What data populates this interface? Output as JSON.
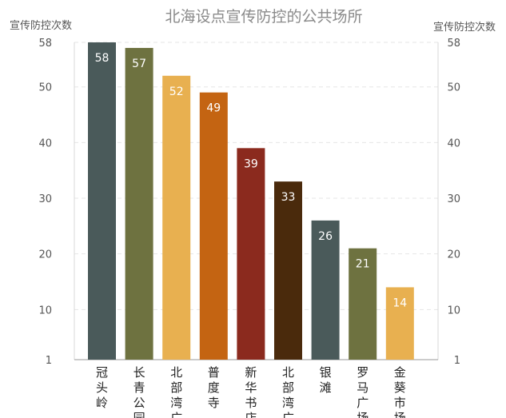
{
  "chart_data": {
    "type": "bar",
    "title": "北海设点宣传防控的公共场所",
    "ylabel": "宣传防控次数",
    "ylabel_right": "宣传防控次数",
    "ylim": [
      1,
      58
    ],
    "yticks": [
      1,
      10,
      20,
      30,
      40,
      50,
      58
    ],
    "grid": true,
    "categories": [
      "冠头岭",
      "长青公园",
      "北部湾广场",
      "普度寺",
      "新华书店",
      "北部湾广场",
      "银滩",
      "罗马广场",
      "金葵市场"
    ],
    "category_visible_lines": [
      [
        "冠",
        "头",
        "岭"
      ],
      [
        "长",
        "青",
        "公",
        "园"
      ],
      [
        "北",
        "部",
        "湾",
        "广"
      ],
      [
        "普",
        "度",
        "寺"
      ],
      [
        "新",
        "华",
        "书",
        "店"
      ],
      [
        "北",
        "部",
        "湾",
        "广"
      ],
      [
        "银",
        "滩"
      ],
      [
        "罗",
        "马",
        "广",
        "场"
      ],
      [
        "金",
        "葵",
        "市",
        "场"
      ]
    ],
    "values": [
      58,
      57,
      52,
      49,
      39,
      33,
      26,
      21,
      14
    ],
    "colors": [
      "#4a5a5a",
      "#6e7240",
      "#e8b050",
      "#c46412",
      "#8b2a1e",
      "#4a2a0c",
      "#4a5a5a",
      "#6e7240",
      "#e8b050"
    ],
    "data_labels": [
      "58",
      "57",
      "52",
      "49",
      "39",
      "33",
      "26",
      "21",
      "14"
    ]
  }
}
